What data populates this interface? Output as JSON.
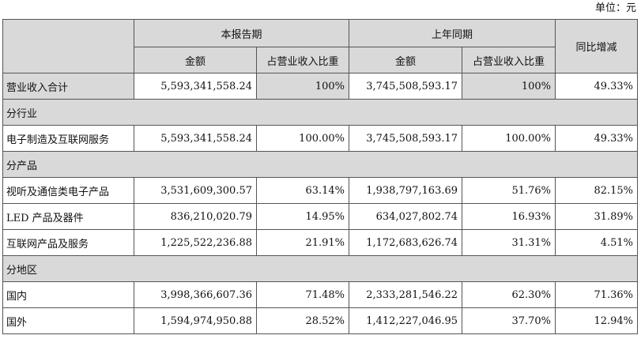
{
  "unit": "单位：元",
  "header": {
    "current_period": "本报告期",
    "prior_period": "上年同期",
    "yoy_change": "同比增减",
    "amount": "金额",
    "revenue_share": "占营业收入比重"
  },
  "total": {
    "label": "营业收入合计",
    "cur_amount": "5,593,341,558.24",
    "cur_share": "100%",
    "prior_amount": "3,745,508,593.17",
    "prior_share": "100%",
    "yoy": "49.33%"
  },
  "sections": [
    {
      "title": "分行业",
      "rows": [
        {
          "label": "电子制造及互联网服务",
          "cur_amount": "5,593,341,558.24",
          "cur_share": "100.00%",
          "prior_amount": "3,745,508,593.17",
          "prior_share": "100.00%",
          "yoy": "49.33%"
        }
      ]
    },
    {
      "title": "分产品",
      "rows": [
        {
          "label": "视听及通信类电子产品",
          "cur_amount": "3,531,609,300.57",
          "cur_share": "63.14%",
          "prior_amount": "1,938,797,163.69",
          "prior_share": "51.76%",
          "yoy": "82.15%"
        },
        {
          "label": "LED 产品及器件",
          "cur_amount": "836,210,020.79",
          "cur_share": "14.95%",
          "prior_amount": "634,027,802.74",
          "prior_share": "16.93%",
          "yoy": "31.89%"
        },
        {
          "label": "互联网产品及服务",
          "cur_amount": "1,225,522,236.88",
          "cur_share": "21.91%",
          "prior_amount": "1,172,683,626.74",
          "prior_share": "31.31%",
          "yoy": "4.51%"
        }
      ]
    },
    {
      "title": "分地区",
      "rows": [
        {
          "label": "国内",
          "cur_amount": "3,998,366,607.36",
          "cur_share": "71.48%",
          "prior_amount": "2,333,281,546.22",
          "prior_share": "62.30%",
          "yoy": "71.36%"
        },
        {
          "label": "国外",
          "cur_amount": "1,594,974,950.88",
          "cur_share": "28.52%",
          "prior_amount": "1,412,227,046.95",
          "prior_share": "37.70%",
          "yoy": "12.94%"
        }
      ]
    }
  ]
}
